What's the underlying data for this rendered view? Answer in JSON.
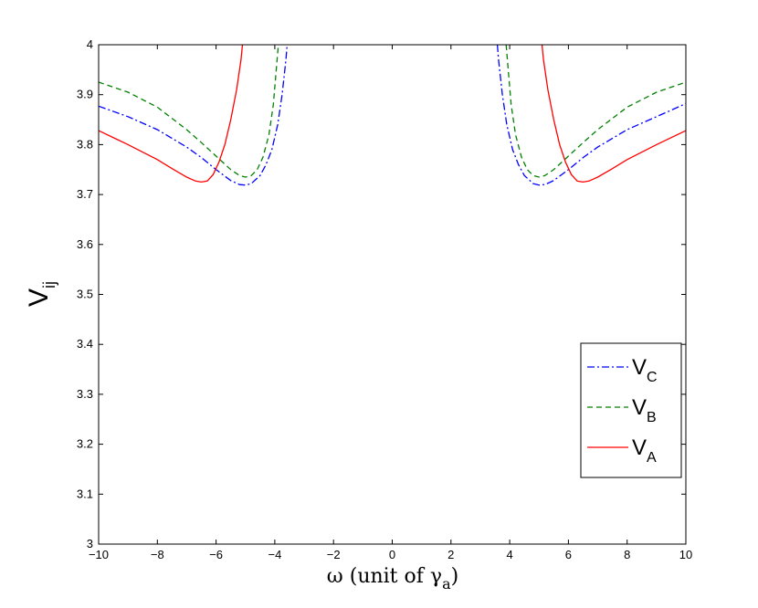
{
  "chart_data": {
    "type": "line",
    "xlabel_prefix": "ω (unit of γ",
    "xlabel_sub": "a",
    "xlabel_suffix": ")",
    "ylabel_main": "V",
    "ylabel_sub": "ij",
    "xlim": [
      -10,
      10
    ],
    "ylim": [
      3,
      4
    ],
    "xticks": [
      "−10",
      "−8",
      "−6",
      "−4",
      "−2",
      "0",
      "2",
      "4",
      "6",
      "8",
      "10"
    ],
    "yticks": [
      "3",
      "3.1",
      "3.2",
      "3.3",
      "3.4",
      "3.5",
      "3.6",
      "3.7",
      "3.8",
      "3.9",
      "4"
    ],
    "grid": false,
    "legend_position": "lower-right",
    "series": [
      {
        "name_main": "V",
        "name_sub": "C",
        "color": "#0000ff",
        "style": "dashdot",
        "segments": [
          [
            [
              -10,
              3.877
            ],
            [
              -9,
              3.856
            ],
            [
              -8,
              3.83
            ],
            [
              -7,
              3.795
            ],
            [
              -6.5,
              3.774
            ],
            [
              -6,
              3.75
            ],
            [
              -5.5,
              3.728
            ],
            [
              -5.2,
              3.72
            ],
            [
              -5,
              3.719
            ],
            [
              -4.8,
              3.722
            ],
            [
              -4.5,
              3.738
            ],
            [
              -4.3,
              3.76
            ],
            [
              -4.1,
              3.79
            ],
            [
              -3.9,
              3.84
            ],
            [
              -3.75,
              3.9
            ],
            [
              -3.62,
              3.97
            ],
            [
              -3.58,
              4.0
            ]
          ],
          [
            [
              3.58,
              4.0
            ],
            [
              3.62,
              3.97
            ],
            [
              3.75,
              3.9
            ],
            [
              3.9,
              3.84
            ],
            [
              4.1,
              3.79
            ],
            [
              4.3,
              3.76
            ],
            [
              4.5,
              3.738
            ],
            [
              4.8,
              3.722
            ],
            [
              5,
              3.719
            ],
            [
              5.2,
              3.72
            ],
            [
              5.5,
              3.728
            ],
            [
              6,
              3.75
            ],
            [
              6.5,
              3.774
            ],
            [
              7,
              3.795
            ],
            [
              8,
              3.83
            ],
            [
              9,
              3.856
            ],
            [
              10,
              3.882
            ]
          ]
        ]
      },
      {
        "name_main": "V",
        "name_sub": "B",
        "color": "#008000",
        "style": "dashed",
        "segments": [
          [
            [
              -10,
              3.925
            ],
            [
              -9,
              3.905
            ],
            [
              -8,
              3.875
            ],
            [
              -7,
              3.83
            ],
            [
              -6.5,
              3.804
            ],
            [
              -6,
              3.777
            ],
            [
              -5.5,
              3.75
            ],
            [
              -5.2,
              3.738
            ],
            [
              -5,
              3.735
            ],
            [
              -4.8,
              3.738
            ],
            [
              -4.6,
              3.75
            ],
            [
              -4.4,
              3.775
            ],
            [
              -4.2,
              3.82
            ],
            [
              -4.05,
              3.88
            ],
            [
              -3.95,
              3.95
            ],
            [
              -3.88,
              4.0
            ]
          ],
          [
            [
              3.88,
              4.0
            ],
            [
              3.95,
              3.95
            ],
            [
              4.05,
              3.88
            ],
            [
              4.2,
              3.82
            ],
            [
              4.4,
              3.775
            ],
            [
              4.6,
              3.75
            ],
            [
              4.8,
              3.738
            ],
            [
              5,
              3.735
            ],
            [
              5.2,
              3.738
            ],
            [
              5.5,
              3.75
            ],
            [
              6,
              3.777
            ],
            [
              6.5,
              3.804
            ],
            [
              7,
              3.83
            ],
            [
              8,
              3.875
            ],
            [
              9,
              3.905
            ],
            [
              10,
              3.925
            ]
          ]
        ]
      },
      {
        "name_main": "V",
        "name_sub": "A",
        "color": "#ff0000",
        "style": "solid",
        "segments": [
          [
            [
              -10,
              3.828
            ],
            [
              -9,
              3.8
            ],
            [
              -8,
              3.77
            ],
            [
              -7.5,
              3.752
            ],
            [
              -7,
              3.735
            ],
            [
              -6.7,
              3.727
            ],
            [
              -6.5,
              3.725
            ],
            [
              -6.3,
              3.727
            ],
            [
              -6.1,
              3.74
            ],
            [
              -5.9,
              3.765
            ],
            [
              -5.7,
              3.8
            ],
            [
              -5.5,
              3.85
            ],
            [
              -5.3,
              3.91
            ],
            [
              -5.15,
              3.97
            ],
            [
              -5.1,
              4.0
            ]
          ],
          [
            [
              5.1,
              4.0
            ],
            [
              5.15,
              3.97
            ],
            [
              5.3,
              3.91
            ],
            [
              5.5,
              3.85
            ],
            [
              5.7,
              3.8
            ],
            [
              5.9,
              3.765
            ],
            [
              6.1,
              3.74
            ],
            [
              6.3,
              3.727
            ],
            [
              6.5,
              3.725
            ],
            [
              6.7,
              3.727
            ],
            [
              7,
              3.735
            ],
            [
              7.5,
              3.752
            ],
            [
              8,
              3.77
            ],
            [
              9,
              3.8
            ],
            [
              10,
              3.828
            ]
          ]
        ]
      }
    ]
  }
}
